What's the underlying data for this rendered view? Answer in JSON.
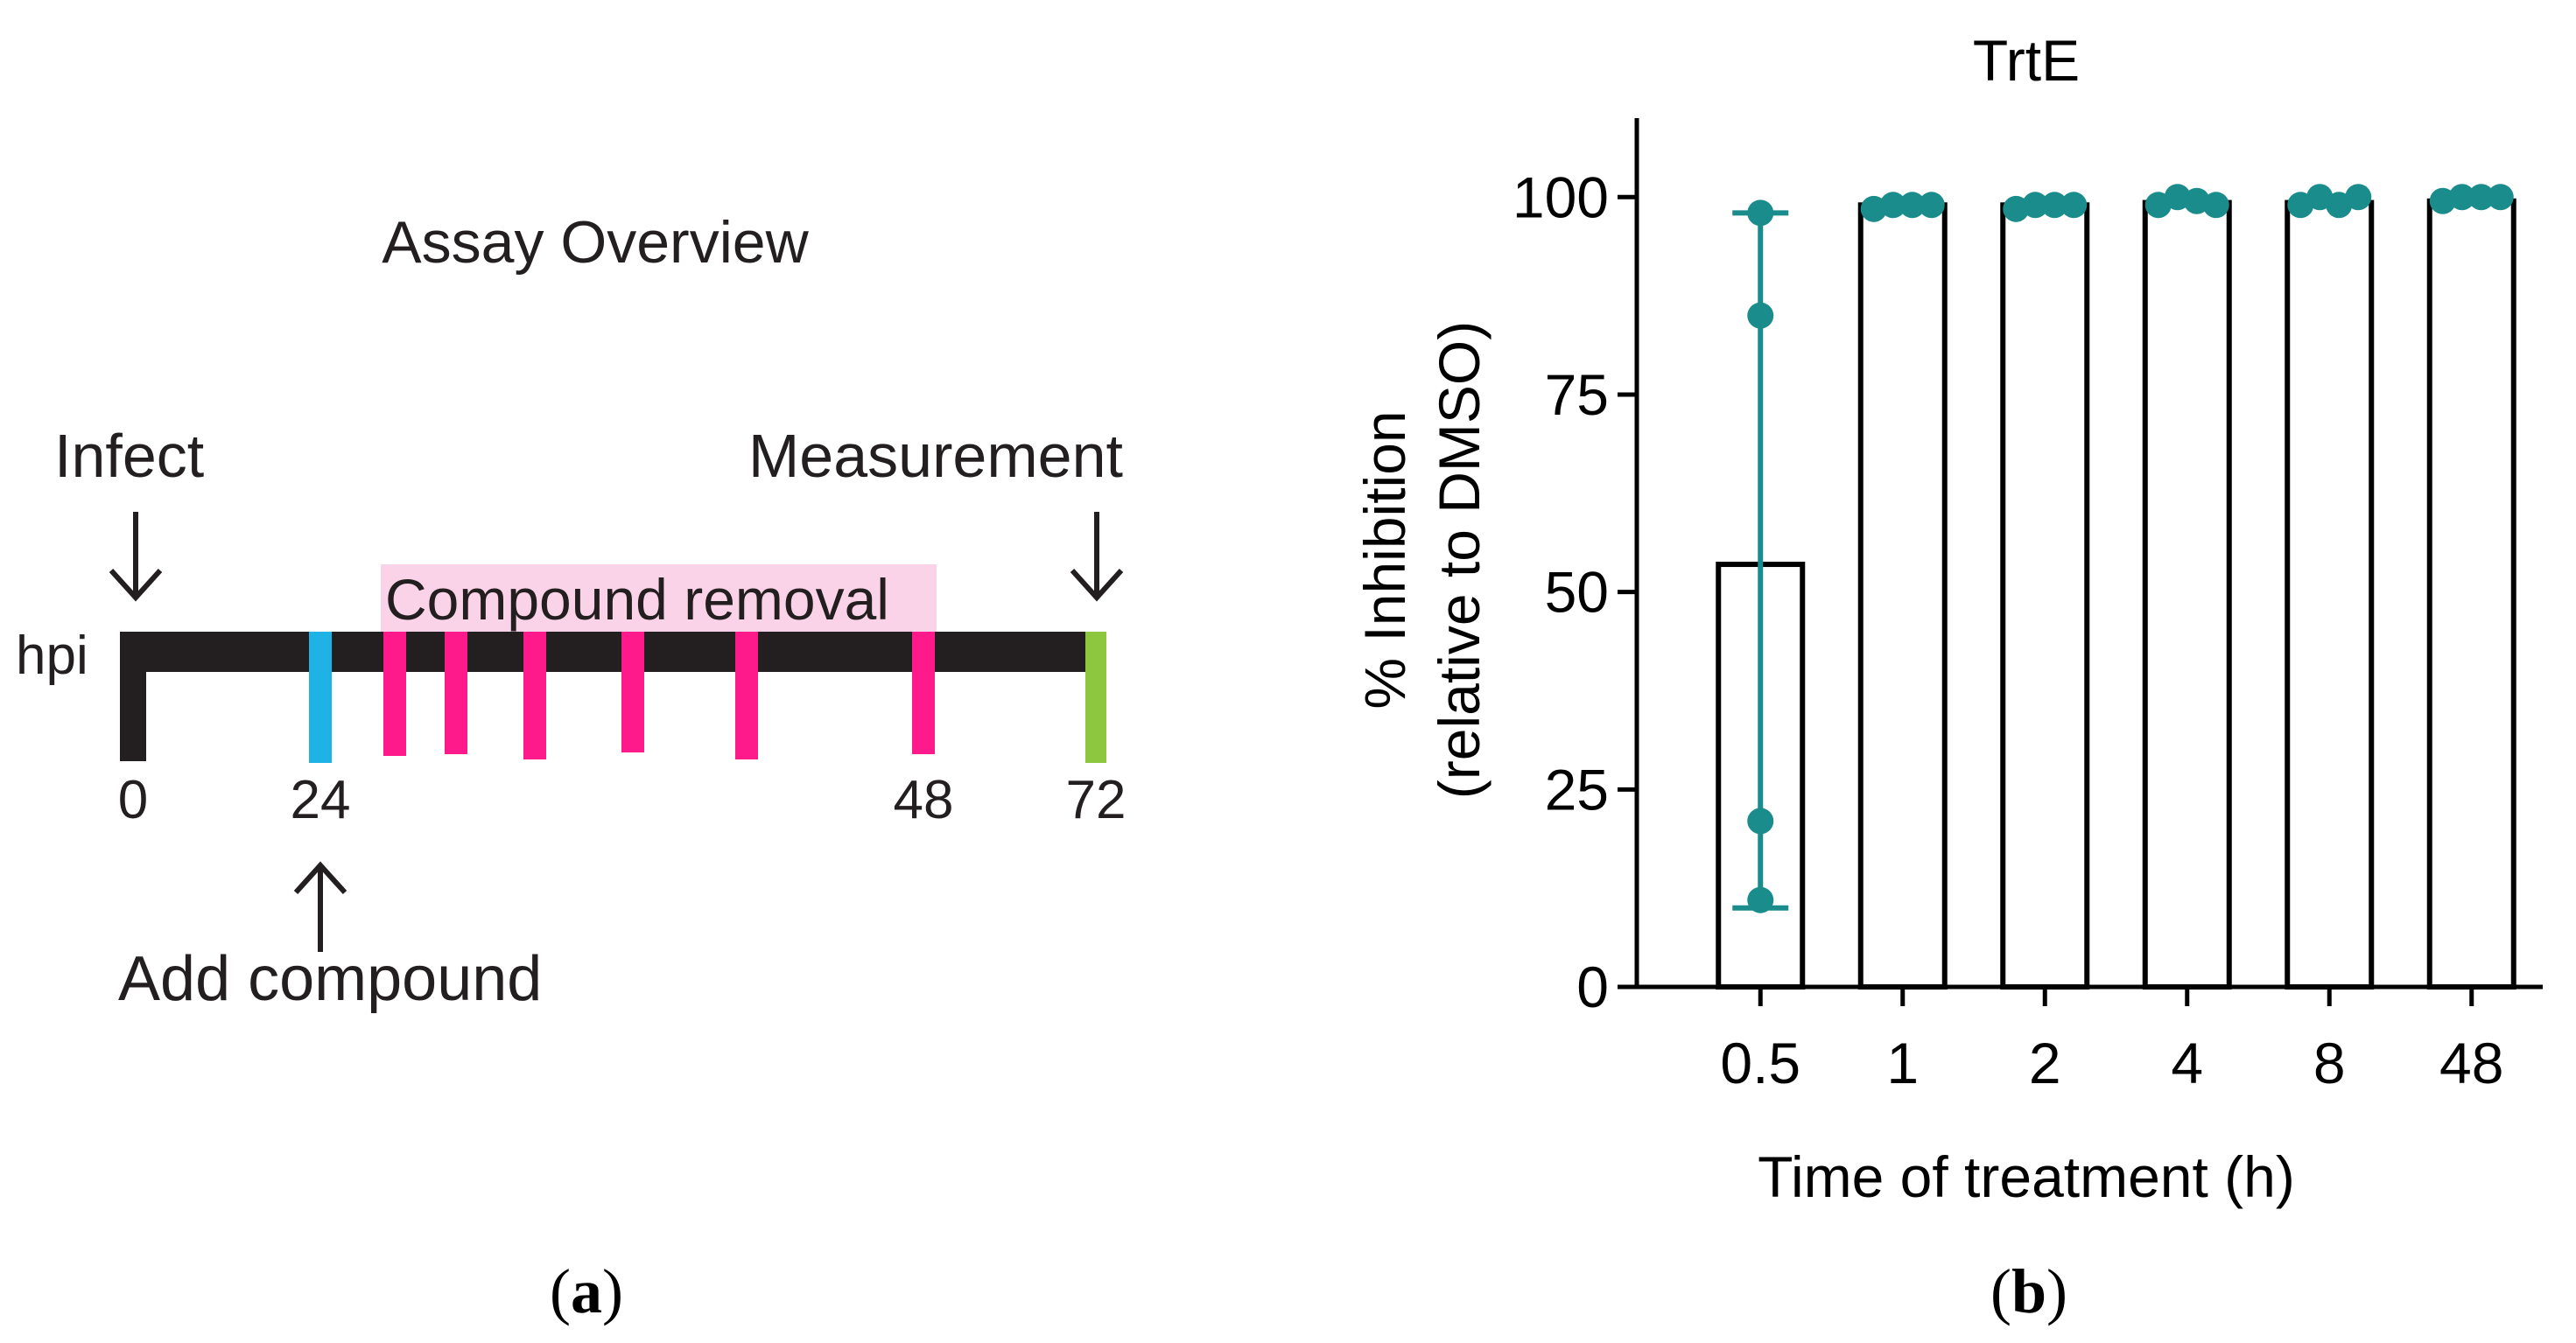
{
  "panel_a": {
    "title": "Assay Overview",
    "axis_label": "hpi",
    "events": {
      "infect": "Infect",
      "measurement": "Measurement",
      "add_compound": "Add compound",
      "compound_removal": "Compound removal"
    },
    "timepoints": [
      "0",
      "24",
      "48",
      "72"
    ],
    "colors": {
      "timeline": "#231f20",
      "add": "#1fb3e5",
      "removal": "#ff1a8c",
      "removal_band": "#fbd3e8",
      "measure": "#8dc63f"
    },
    "label": "a"
  },
  "chart_data": {
    "type": "bar",
    "title": "TrtE",
    "xlabel": "Time of treatment (h)",
    "ylabel_line1": "% Inhibition",
    "ylabel_line2": "(relative to DMSO)",
    "categories": [
      "0.5",
      "1",
      "2",
      "4",
      "8",
      "48"
    ],
    "values": [
      53.5,
      99.0,
      99.0,
      99.3,
      99.3,
      99.5
    ],
    "error_low": [
      10,
      98.5,
      98.5,
      99,
      99,
      99.2
    ],
    "error_high": [
      98,
      99.5,
      99.5,
      99.8,
      99.8,
      99.8
    ],
    "points": [
      [
        98,
        85,
        21,
        11
      ],
      [
        98.5,
        99,
        99,
        99
      ],
      [
        98.5,
        99,
        99,
        99
      ],
      [
        99,
        100,
        99.5,
        99
      ],
      [
        99,
        100,
        99,
        100
      ],
      [
        99.5,
        100,
        100,
        100
      ]
    ],
    "ylim": [
      0,
      110
    ],
    "yticks": [
      "0",
      "25",
      "50",
      "75",
      "100"
    ],
    "colors": {
      "point": "#1a8c8c",
      "bar": "#000000"
    },
    "label": "b"
  }
}
